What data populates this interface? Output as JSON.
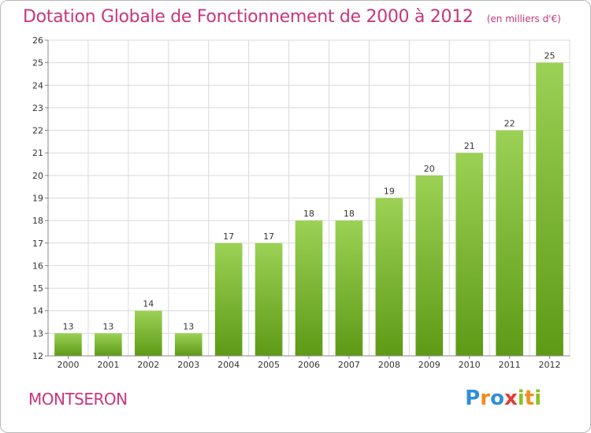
{
  "header": {
    "title": "Dotation Globale de Fonctionnement de 2000 à 2012",
    "subtitle": "(en milliers d'€)"
  },
  "footer": {
    "city": "MONTSERON",
    "logo_text": "Proxiti",
    "logo_letters": [
      {
        "char": "P",
        "color": "#2f8fd6"
      },
      {
        "char": "r",
        "color": "#f28c1c"
      },
      {
        "char": "o",
        "color": "#2f8fd6"
      },
      {
        "char": "x",
        "color": "#e23b3b"
      },
      {
        "char": "i",
        "color": "#8cbf26"
      },
      {
        "char": "t",
        "color": "#f28c1c"
      },
      {
        "char": "i",
        "color": "#8cbf26"
      }
    ]
  },
  "colors": {
    "bar_light": "#9bd155",
    "bar_dark": "#5e9a16",
    "grid": "#d9d9d9",
    "title": "#c8357d",
    "text": "#333333"
  },
  "chart_data": {
    "type": "bar",
    "title": "Dotation Globale de Fonctionnement de 2000 à 2012",
    "subtitle": "(en milliers d'€)",
    "categories": [
      "2000",
      "2001",
      "2002",
      "2003",
      "2004",
      "2005",
      "2006",
      "2007",
      "2008",
      "2009",
      "2010",
      "2011",
      "2012"
    ],
    "values": [
      13,
      13,
      14,
      13,
      17,
      17,
      18,
      18,
      19,
      20,
      21,
      22,
      25
    ],
    "ylim": [
      12,
      26
    ],
    "ytick_step": 1,
    "xlabel": "",
    "ylabel": "",
    "grid": true
  }
}
